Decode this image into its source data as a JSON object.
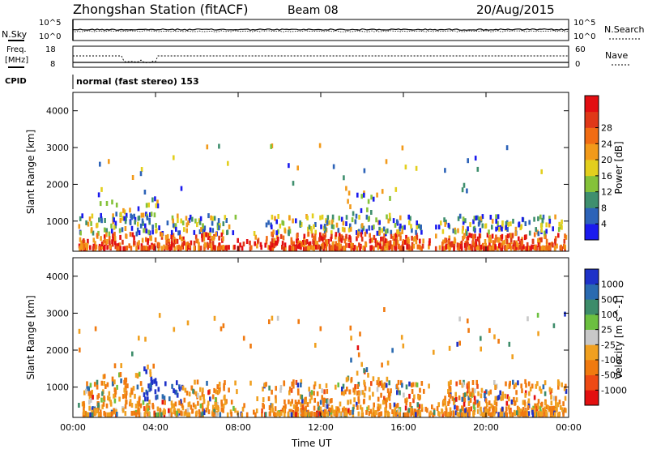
{
  "header": {
    "station": "Zhongshan Station (fitACF)",
    "beam": "Beam 08",
    "date": "20/Aug/2015",
    "mode": "normal (fast stereo) 153"
  },
  "side_labels": {
    "nsky": "N.Sky",
    "nsearch": "N.Search",
    "freq_line1": "Freq.",
    "freq_line2": "[MHz]",
    "nave": "Nave",
    "cpid": "CPID"
  },
  "top_axes": {
    "noise_left_ticks": [
      "10^5",
      "10^0"
    ],
    "noise_right_ticks": [
      "10^5",
      "10^0"
    ],
    "freq_left_ticks": [
      "18",
      "8"
    ],
    "nave_right_ticks": [
      "60",
      "0"
    ]
  },
  "chart_data": [
    {
      "type": "heatmap",
      "name": "power",
      "ylabel": "Slant Range [km]",
      "xlabel": "",
      "x_ticks": [],
      "ylim": [
        180,
        4500
      ],
      "y_ticks": [
        1000,
        2000,
        3000,
        4000
      ],
      "colorbar": {
        "label": "Power [dB]",
        "ticks": [
          4,
          8,
          12,
          16,
          20,
          24,
          28
        ],
        "colors": [
          "#1a1aee",
          "#2d63b8",
          "#3f8f6e",
          "#85c23a",
          "#e3cf1d",
          "#f29a1a",
          "#f16c13",
          "#e03818",
          "#e30e12"
        ]
      }
    },
    {
      "type": "heatmap",
      "name": "velocity",
      "ylabel": "Slant Range [km]",
      "xlabel": "Time UT",
      "x_ticks": [
        "00:00",
        "04:00",
        "08:00",
        "12:00",
        "16:00",
        "20:00",
        "00:00"
      ],
      "ylim": [
        180,
        4500
      ],
      "y_ticks": [
        1000,
        2000,
        3000,
        4000
      ],
      "colorbar": {
        "label": "Velocity [m s^-1]",
        "ticks": [
          "1000",
          "500",
          "100",
          "25",
          "-25",
          "-100",
          "-500",
          "-1000"
        ],
        "colors": [
          "#1e32c8",
          "#2a6ab0",
          "#3d8c6a",
          "#6cc040",
          "#c8c8c8",
          "#f0a020",
          "#f07a10",
          "#ee4a14",
          "#e31010"
        ]
      }
    }
  ]
}
